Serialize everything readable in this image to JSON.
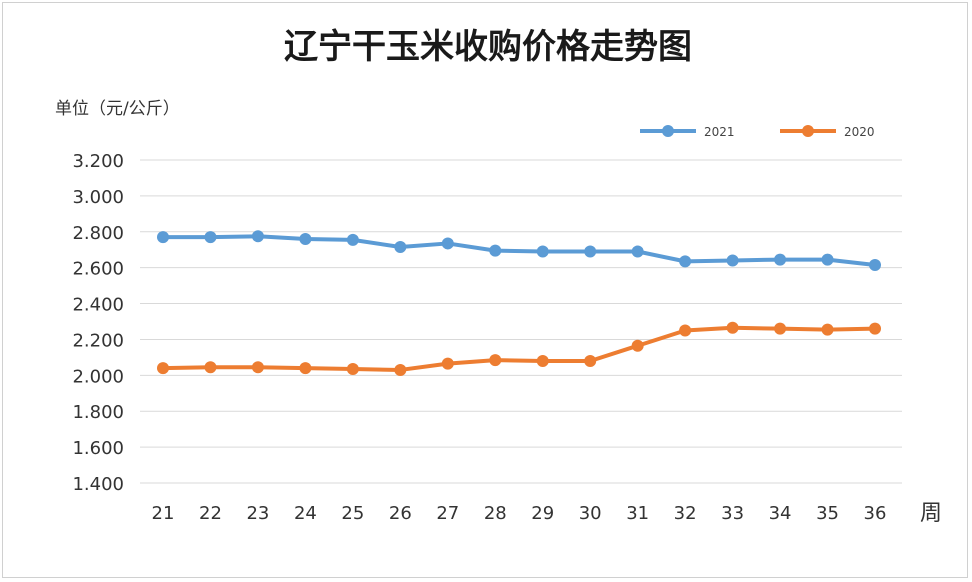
{
  "chart_data": {
    "type": "line",
    "title": "辽宁干玉米收购价格走势图",
    "ylabel": "单位（元/公斤）",
    "xlabel": "周",
    "categories": [
      "21",
      "22",
      "23",
      "24",
      "25",
      "26",
      "27",
      "28",
      "29",
      "30",
      "31",
      "32",
      "33",
      "34",
      "35",
      "36"
    ],
    "ylim": [
      1.4,
      3.2
    ],
    "yticks": [
      "1.400",
      "1.600",
      "1.800",
      "2.000",
      "2.200",
      "2.400",
      "2.600",
      "2.800",
      "3.000",
      "3.200"
    ],
    "grid": true,
    "legend_position": "top-right",
    "series": [
      {
        "name": "2021",
        "color": "#5B9BD5",
        "values": [
          2.77,
          2.77,
          2.775,
          2.76,
          2.755,
          2.715,
          2.735,
          2.695,
          2.69,
          2.69,
          2.69,
          2.635,
          2.64,
          2.645,
          2.645,
          2.615
        ]
      },
      {
        "name": "2020",
        "color": "#ED7D31",
        "values": [
          2.04,
          2.045,
          2.045,
          2.04,
          2.035,
          2.03,
          2.065,
          2.085,
          2.08,
          2.08,
          2.165,
          2.25,
          2.265,
          2.26,
          2.255,
          2.26
        ]
      }
    ]
  }
}
